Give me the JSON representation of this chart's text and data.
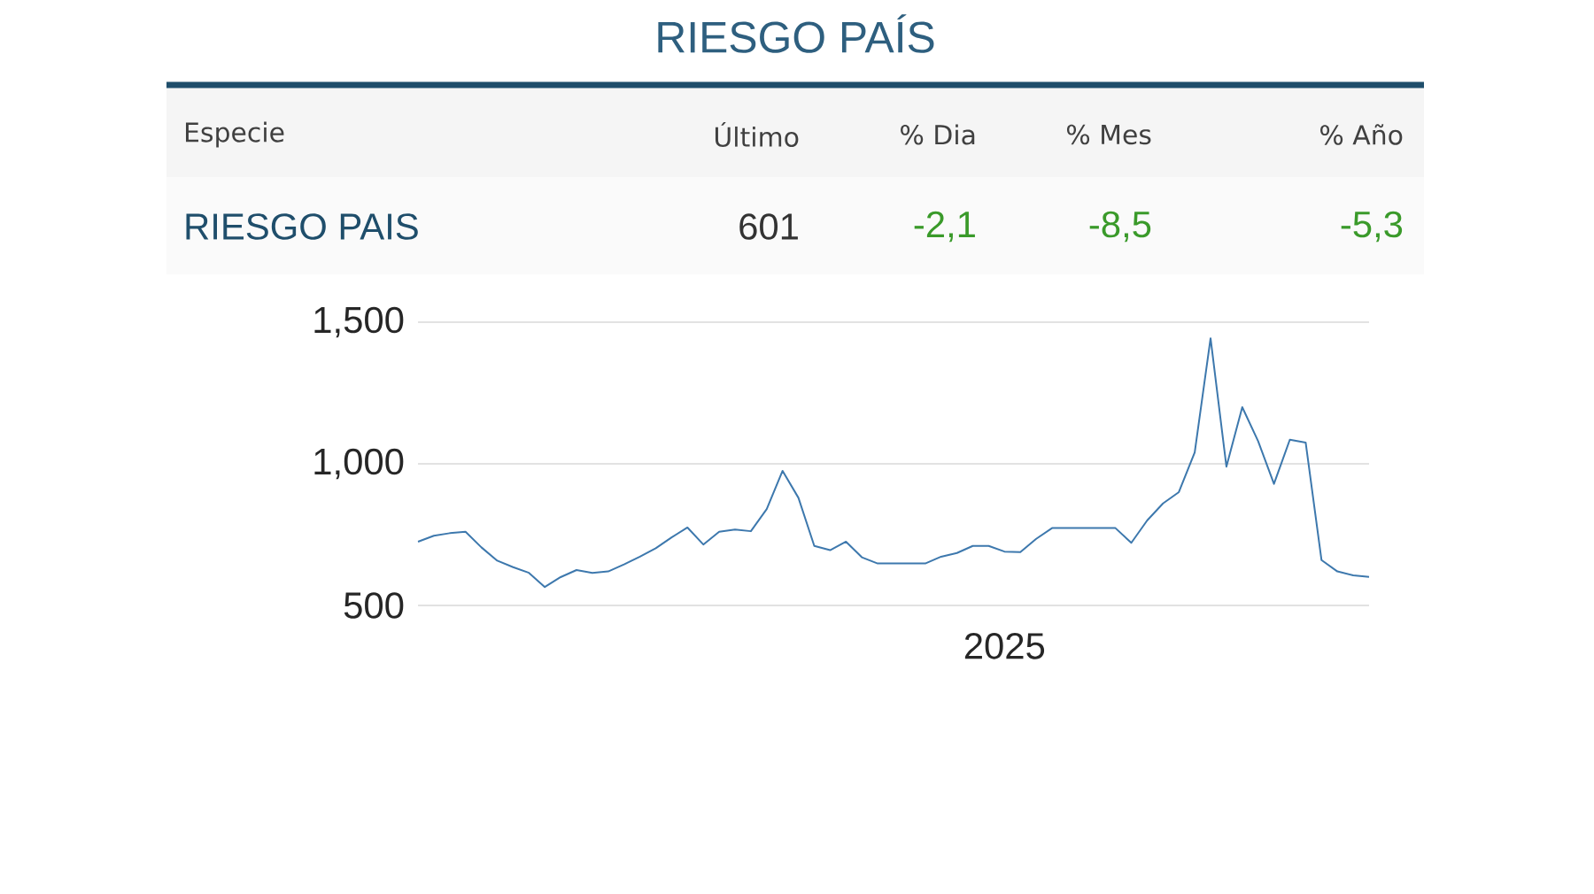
{
  "chart_data": {
    "type": "line",
    "title": "RIESGO PAÍS",
    "annotations": [
      "Especie",
      "Último",
      "% Dia",
      "% Mes",
      "% Año",
      "RIESGO PAIS",
      "601",
      "-2,1",
      "-8,5",
      "-5,3"
    ],
    "categories": [
      null,
      null,
      null,
      null,
      null,
      null,
      null,
      null,
      null,
      null,
      null,
      null,
      null,
      null,
      null,
      null,
      null,
      null,
      null,
      null,
      null,
      null,
      null,
      null,
      null,
      null,
      null,
      null,
      null,
      null,
      null,
      null,
      null,
      null,
      null,
      null,
      null,
      "2025",
      null,
      null,
      null,
      null,
      null,
      null,
      null,
      null,
      null,
      null,
      null,
      null,
      null,
      null,
      null,
      null,
      null,
      null,
      null,
      null,
      null,
      null,
      null
    ],
    "series": [
      {
        "color": "#3d78ad",
        "values": [
          725,
          746,
          755,
          760,
          705,
          658,
          635,
          615,
          565,
          600,
          625,
          615,
          620,
          645,
          672,
          702,
          740,
          775,
          715,
          760,
          768,
          762,
          840,
          975,
          880,
          710,
          695,
          725,
          670,
          648,
          648,
          648,
          648,
          672,
          685,
          710,
          710,
          690,
          688,
          735,
          773,
          773,
          773,
          773,
          773,
          721,
          800,
          860,
          900,
          1040,
          1443,
          990,
          1200,
          1080,
          929,
          1085,
          1075,
          660,
          620,
          606,
          601
        ]
      }
    ],
    "ylim": [
      500,
      1500
    ],
    "yticks": [
      {
        "value": 500,
        "label": "500"
      },
      {
        "value": 1000,
        "label": "1,000"
      },
      {
        "value": 1500,
        "label": "1,500"
      }
    ],
    "grid": "y",
    "marker": "none",
    "line_style": "solid"
  }
}
